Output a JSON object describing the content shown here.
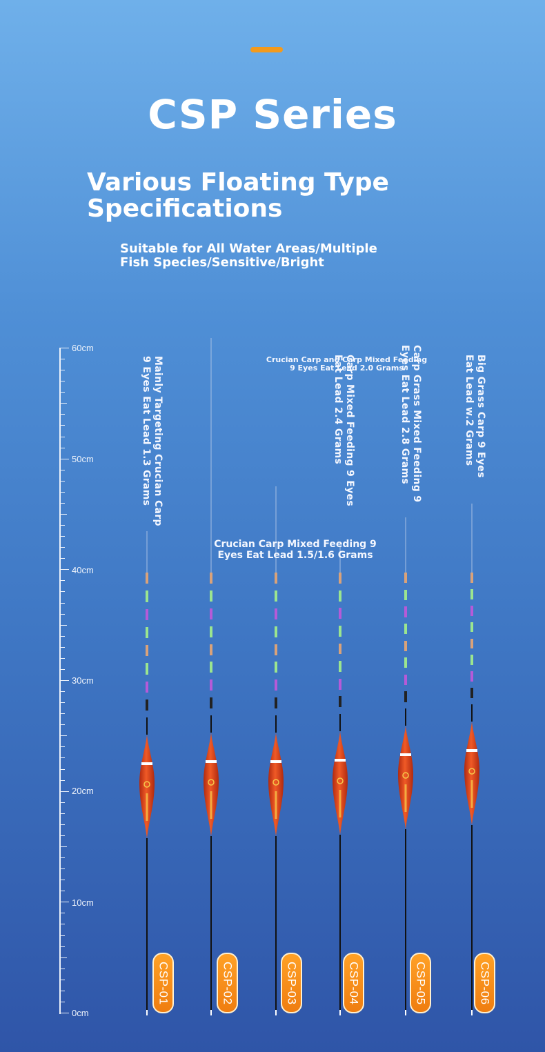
{
  "header": {
    "title": "CSP Series",
    "subtitle": "Various Floating Type\n Specifications",
    "tagline": "Suitable for All Water Areas/Multiple\n Fish Species/Sensitive/Bright"
  },
  "ruler": {
    "labels": [
      "60cm",
      "50cm",
      "40cm",
      "30cm",
      "20cm",
      "10cm",
      "0cm"
    ]
  },
  "floats": [
    {
      "model": "CSP-01",
      "description": "Mainly Targeting Crucian Carp\n9 Eyes Eat Lead 1.3 Grams"
    },
    {
      "model": "CSP-02",
      "description": ""
    },
    {
      "model": "CSP-03",
      "description": ""
    },
    {
      "model": "CSP-04",
      "description": "Carp Mixed Feeding 9 Eyes\nEat Lead 2.4 Grams"
    },
    {
      "model": "CSP-05",
      "description": "Carp Grass Mixed Feeding 9\nEyes Eat Lead 2.8 Grams"
    },
    {
      "model": "CSP-06",
      "description": "Big Grass Carp 9 Eyes\nEat Lead w.2 Grams"
    }
  ],
  "annotations": {
    "crucian_mixed": "Crucian Carp Mixed Feeding 9\nEyes Eat Lead 1.5/1.6 Grams",
    "crucian_carp_mixed": "Crucian Carp and Carp Mixed Feeding\n9 Eyes Eat Lead 2.0 Grams"
  },
  "colors": {
    "accent": "#f39a1c",
    "float_body": "#e8401c",
    "badge": "#f58a18"
  }
}
